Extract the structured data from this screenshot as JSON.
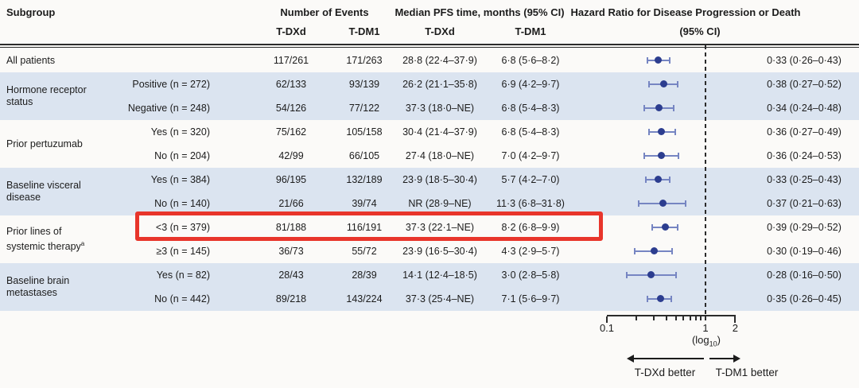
{
  "colors": {
    "row_shade": "#dbe4f0",
    "marker": "#2c3d8f",
    "whisker": "#7685c2",
    "highlight_box": "#e8352b",
    "text": "#1c1c1c",
    "rule": "#2b2b2b"
  },
  "header": {
    "subgroup": "Subgroup",
    "events_label": "Number of Events",
    "events_col1": "T-DXd",
    "events_col2": "T-DM1",
    "median_label": "Median PFS time, months (95% CI)",
    "median_col1": "T-DXd",
    "median_col2": "T-DM1",
    "hazard_label": "Hazard Ratio for Disease Progression or Death",
    "hazard_label2": "(95% CI)"
  },
  "chart_data": {
    "type": "forest",
    "x_axis": {
      "scale": "log10",
      "min": 0.1,
      "max": 2,
      "reference_line": 1,
      "ticks": [
        0.1,
        0.2,
        0.3,
        0.4,
        0.5,
        0.6,
        0.7,
        0.8,
        0.9,
        1,
        2
      ],
      "labeled_ticks": [
        {
          "value": 0.1,
          "label": "0.1"
        },
        {
          "value": 1,
          "label": "1"
        },
        {
          "value": 2,
          "label": "2"
        }
      ],
      "note_pre": "(log",
      "note_sub": "10",
      "note_post": ")"
    },
    "direction_left": "T-DXd better",
    "direction_right": "T-DM1 better",
    "groups": [
      {
        "label_lines": [
          "All patients"
        ],
        "rows": [
          {
            "subgroup_value": "",
            "events_tdxd": "117/261",
            "events_tdm1": "171/263",
            "median_tdxd": "28·8 (22·4–37·9)",
            "median_tdm1": "6·8 (5·6–8·2)",
            "hr_text": "0·33 (0·26–0·43)",
            "hr": 0.33,
            "ci_low": 0.26,
            "ci_high": 0.43,
            "highlighted": false
          }
        ]
      },
      {
        "label_lines": [
          "Hormone receptor",
          "status"
        ],
        "rows": [
          {
            "subgroup_value": "Positive (n = 272)",
            "events_tdxd": "62/133",
            "events_tdm1": "93/139",
            "median_tdxd": "26·2 (21·1–35·8)",
            "median_tdm1": "6·9 (4·2–9·7)",
            "hr_text": "0·38 (0·27–0·52)",
            "hr": 0.38,
            "ci_low": 0.27,
            "ci_high": 0.52,
            "highlighted": false
          },
          {
            "subgroup_value": "Negative (n = 248)",
            "events_tdxd": "54/126",
            "events_tdm1": "77/122",
            "median_tdxd": "37·3 (18·0–NE)",
            "median_tdm1": "6·8 (5·4–8·3)",
            "hr_text": "0·34 (0·24–0·48)",
            "hr": 0.34,
            "ci_low": 0.24,
            "ci_high": 0.48,
            "highlighted": false
          }
        ]
      },
      {
        "label_lines": [
          "Prior pertuzumab"
        ],
        "rows": [
          {
            "subgroup_value": "Yes (n = 320)",
            "events_tdxd": "75/162",
            "events_tdm1": "105/158",
            "median_tdxd": "30·4 (21·4–37·9)",
            "median_tdm1": "6·8 (5·4–8·3)",
            "hr_text": "0·36 (0·27–0·49)",
            "hr": 0.36,
            "ci_low": 0.27,
            "ci_high": 0.49,
            "highlighted": false
          },
          {
            "subgroup_value": "No (n = 204)",
            "events_tdxd": "42/99",
            "events_tdm1": "66/105",
            "median_tdxd": "27·4 (18·0–NE)",
            "median_tdm1": "7·0 (4·2–9·7)",
            "hr_text": "0·36 (0·24–0·53)",
            "hr": 0.36,
            "ci_low": 0.24,
            "ci_high": 0.53,
            "highlighted": false
          }
        ]
      },
      {
        "label_lines": [
          "Baseline visceral",
          "disease"
        ],
        "rows": [
          {
            "subgroup_value": "Yes (n = 384)",
            "events_tdxd": "96/195",
            "events_tdm1": "132/189",
            "median_tdxd": "23·9 (18·5–30·4)",
            "median_tdm1": "5·7 (4·2–7·0)",
            "hr_text": "0·33 (0·25–0·43)",
            "hr": 0.33,
            "ci_low": 0.25,
            "ci_high": 0.43,
            "highlighted": false
          },
          {
            "subgroup_value": "No (n = 140)",
            "events_tdxd": "21/66",
            "events_tdm1": "39/74",
            "median_tdxd": "NR (28·9–NE)",
            "median_tdm1": "11·3 (6·8–31·8)",
            "hr_text": "0·37 (0·21–0·63)",
            "hr": 0.37,
            "ci_low": 0.21,
            "ci_high": 0.63,
            "highlighted": false
          }
        ]
      },
      {
        "label_lines": [
          "Prior lines of",
          "systemic therapy"
        ],
        "label_sup": "a",
        "rows": [
          {
            "subgroup_value": "<3 (n = 379)",
            "events_tdxd": "81/188",
            "events_tdm1": "116/191",
            "median_tdxd": "37·3 (22·1–NE)",
            "median_tdm1": "8·2 (6·8–9·9)",
            "hr_text": "0·39 (0·29–0·52)",
            "hr": 0.39,
            "ci_low": 0.29,
            "ci_high": 0.52,
            "highlighted": true
          },
          {
            "subgroup_value": "≥3 (n = 145)",
            "events_tdxd": "36/73",
            "events_tdm1": "55/72",
            "median_tdxd": "23·9 (16·5–30·4)",
            "median_tdm1": "4·3 (2·9–5·7)",
            "hr_text": "0·30 (0·19–0·46)",
            "hr": 0.3,
            "ci_low": 0.19,
            "ci_high": 0.46,
            "highlighted": false
          }
        ]
      },
      {
        "label_lines": [
          "Baseline brain",
          "metastases"
        ],
        "rows": [
          {
            "subgroup_value": "Yes (n = 82)",
            "events_tdxd": "28/43",
            "events_tdm1": "28/39",
            "median_tdxd": "14·1 (12·4–18·5)",
            "median_tdm1": "3·0 (2·8–5·8)",
            "hr_text": "0·28 (0·16–0·50)",
            "hr": 0.28,
            "ci_low": 0.16,
            "ci_high": 0.5,
            "highlighted": false
          },
          {
            "subgroup_value": "No (n = 442)",
            "events_tdxd": "89/218",
            "events_tdm1": "143/224",
            "median_tdxd": "37·3 (25·4–NE)",
            "median_tdm1": "7·1 (5·6–9·7)",
            "hr_text": "0·35 (0·26–0·45)",
            "hr": 0.35,
            "ci_low": 0.26,
            "ci_high": 0.45,
            "highlighted": false
          }
        ]
      }
    ]
  }
}
